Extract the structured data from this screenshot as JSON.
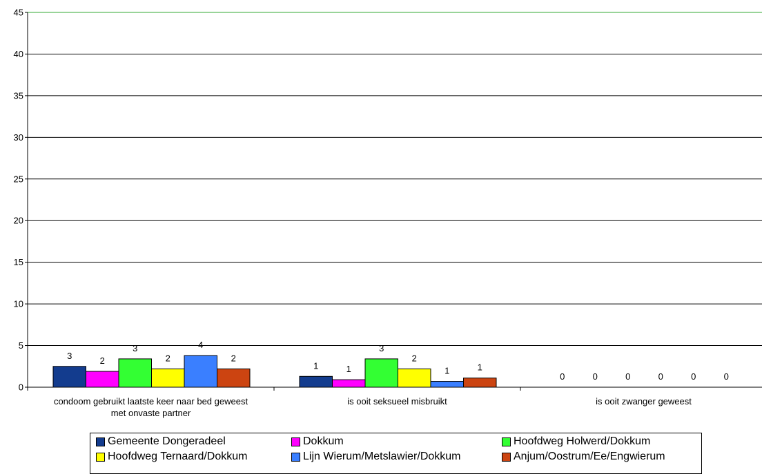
{
  "chart_data": {
    "type": "bar",
    "title": "",
    "xlabel": "",
    "ylabel": "",
    "ylim": [
      0,
      45
    ],
    "yticks": [
      0,
      5,
      10,
      15,
      20,
      25,
      30,
      35,
      40,
      45
    ],
    "grid": true,
    "legend_position": "bottom",
    "categories": [
      [
        "condoom gebruikt laatste keer naar bed geweest",
        "met onvaste partner"
      ],
      [
        "is ooit seksueel misbruikt"
      ],
      [
        "is ooit zwanger geweest"
      ]
    ],
    "series": [
      {
        "name": "Gemeente Dongeradeel",
        "color": "#133C8E",
        "values": [
          2.5,
          1.3,
          0
        ],
        "labels": [
          "3",
          "1",
          "0"
        ]
      },
      {
        "name": "Dokkum",
        "color": "#FF00FF",
        "values": [
          1.9,
          0.9,
          0
        ],
        "labels": [
          "2",
          "1",
          "0"
        ]
      },
      {
        "name": "Hoofdweg Holwerd/Dokkum",
        "color": "#33FF33",
        "values": [
          3.4,
          3.4,
          0
        ],
        "labels": [
          "3",
          "3",
          "0"
        ]
      },
      {
        "name": "Hoofdweg Ternaard/Dokkum",
        "color": "#FFFF00",
        "values": [
          2.2,
          2.2,
          0
        ],
        "labels": [
          "2",
          "2",
          "0"
        ]
      },
      {
        "name": "Lijn Wierum/Metslawier/Dokkum",
        "color": "#3A7FFF",
        "values": [
          3.8,
          0.7,
          0
        ],
        "labels": [
          "4",
          "1",
          "0"
        ]
      },
      {
        "name": "Anjum/Oostrum/Ee/Engwierum",
        "color": "#CC4411",
        "values": [
          2.2,
          1.1,
          0
        ],
        "labels": [
          "2",
          "1",
          "0"
        ]
      }
    ]
  }
}
